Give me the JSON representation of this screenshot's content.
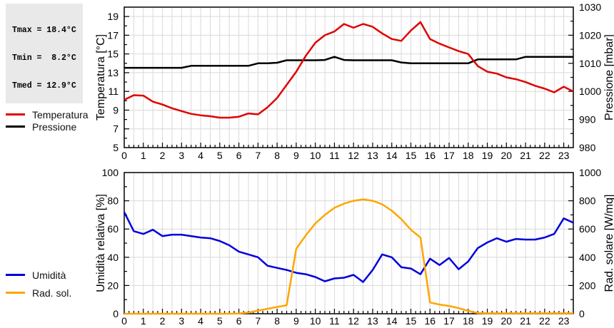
{
  "stats_box": {
    "lines": [
      "Tmax = 18.4°C",
      "Tmin =  8.2°C",
      "Tmed = 12.9°C"
    ]
  },
  "colors": {
    "grid": "#d9d9d9",
    "plot_border": "#000000",
    "stats_background": "#e9e9e9",
    "page_background": "#ffffff"
  },
  "chart_data": [
    {
      "type": "line",
      "title": "",
      "legend_position": "left-outside",
      "grid": true,
      "x_axis": {
        "min": 0,
        "max": 23.5,
        "grid_step": 0.5,
        "minor_step": 0.25,
        "hour_labels": [
          0,
          1,
          2,
          3,
          4,
          5,
          6,
          7,
          8,
          9,
          10,
          11,
          12,
          13,
          14,
          15,
          16,
          17,
          18,
          19,
          20,
          21,
          22,
          23
        ]
      },
      "left_axis": {
        "title": "Temperatura [°C]",
        "min": 5,
        "max": 20,
        "minor_step": 1,
        "ticks": [
          5,
          7,
          9,
          11,
          13,
          15,
          17,
          19
        ]
      },
      "right_axis": {
        "title": "Pressione [mbar]",
        "min": 980,
        "max": 1030,
        "minor_step": 5,
        "ticks": [
          980,
          990,
          1000,
          1010,
          1020,
          1030
        ]
      },
      "x_hours": [
        0,
        0.5,
        1,
        1.5,
        2,
        2.5,
        3,
        3.5,
        4,
        4.5,
        5,
        5.5,
        6,
        6.5,
        7,
        7.5,
        8,
        8.5,
        9,
        9.5,
        10,
        10.5,
        11,
        11.5,
        12,
        12.5,
        13,
        13.5,
        14,
        14.5,
        15,
        15.5,
        16,
        16.5,
        17,
        17.5,
        18,
        18.5,
        19,
        19.5,
        20,
        20.5,
        21,
        21.5,
        22,
        22.5,
        23,
        23.5
      ],
      "series": [
        {
          "name": "Pressione",
          "axis": "right",
          "color": "#000000",
          "values": [
            1008.4,
            1008.4,
            1008.4,
            1008.4,
            1008.4,
            1008.4,
            1008.4,
            1009.1,
            1009.1,
            1009.1,
            1009.1,
            1009.1,
            1009.1,
            1009.1,
            1010,
            1010,
            1010.2,
            1011.1,
            1011.1,
            1011.1,
            1011.1,
            1011.2,
            1012.3,
            1011.2,
            1011.1,
            1011.1,
            1011.1,
            1011.1,
            1011.1,
            1010.3,
            1010,
            1010,
            1010,
            1010,
            1010,
            1010,
            1010,
            1011.4,
            1011.4,
            1011.4,
            1011.4,
            1011.4,
            1012.3,
            1012.3,
            1012.3,
            1012.3,
            1012.3,
            1012.3
          ]
        },
        {
          "name": "Temperatura",
          "axis": "left",
          "color": "#e00000",
          "values": [
            10.1,
            10.6,
            10.55,
            9.9,
            9.6,
            9.2,
            8.9,
            8.6,
            8.45,
            8.35,
            8.2,
            8.2,
            8.3,
            8.65,
            8.55,
            9.3,
            10.3,
            11.7,
            13.1,
            14.8,
            16.2,
            17.0,
            17.4,
            18.2,
            17.8,
            18.2,
            17.9,
            17.2,
            16.6,
            16.4,
            17.5,
            18.4,
            16.6,
            16.1,
            15.7,
            15.3,
            15.0,
            13.7,
            13.1,
            12.9,
            12.5,
            12.3,
            12.0,
            11.6,
            11.3,
            10.9,
            11.5,
            11.0
          ]
        }
      ]
    },
    {
      "type": "line",
      "title": "",
      "legend_position": "left-outside",
      "grid": true,
      "x_axis": {
        "min": 0,
        "max": 23.5,
        "grid_step": 0.5,
        "minor_step": 0.25,
        "hour_labels": [
          0,
          1,
          2,
          3,
          4,
          5,
          6,
          7,
          8,
          9,
          10,
          11,
          12,
          13,
          14,
          15,
          16,
          17,
          18,
          19,
          20,
          21,
          22,
          23
        ]
      },
      "left_axis": {
        "title": "Umidità relativa [%]",
        "min": 0,
        "max": 100,
        "minor_step": 10,
        "ticks": [
          0,
          20,
          40,
          60,
          80,
          100
        ]
      },
      "right_axis": {
        "title": "Rad. solare [W/mq]",
        "min": 0,
        "max": 1000,
        "minor_step": 100,
        "ticks": [
          0,
          200,
          400,
          600,
          800,
          1000
        ]
      },
      "x_hours": [
        0,
        0.5,
        1,
        1.5,
        2,
        2.5,
        3,
        3.5,
        4,
        4.5,
        5,
        5.5,
        6,
        6.5,
        7,
        7.5,
        8,
        8.5,
        9,
        9.5,
        10,
        10.5,
        11,
        11.5,
        12,
        12.5,
        13,
        13.5,
        14,
        14.5,
        15,
        15.5,
        16,
        16.5,
        17,
        17.5,
        18,
        18.5,
        19,
        19.5,
        20,
        20.5,
        21,
        21.5,
        22,
        22.5,
        23,
        23.5
      ],
      "series": [
        {
          "name": "Umidità",
          "axis": "left",
          "color": "#0000dd",
          "values": [
            72,
            58.5,
            56.5,
            59.5,
            55,
            56,
            56,
            55,
            54,
            53.5,
            51.5,
            48.5,
            44,
            42,
            40,
            34,
            32.5,
            31,
            29,
            28,
            26,
            23,
            25,
            25.5,
            27.5,
            22.5,
            31,
            42,
            40,
            33,
            32,
            28,
            39,
            34.5,
            39.5,
            31.5,
            37,
            46.5,
            50.5,
            53.5,
            51,
            53,
            52.5,
            52.5,
            54,
            56.5,
            67.5,
            64.5
          ]
        },
        {
          "name": "Rad. sol.",
          "axis": "right",
          "color": "#ffa500",
          "values": [
            0,
            0,
            0,
            0,
            0,
            0,
            0,
            0,
            0,
            0,
            0,
            0,
            2,
            8,
            22,
            35,
            48,
            60,
            460,
            555,
            640,
            700,
            750,
            780,
            800,
            810,
            800,
            775,
            730,
            670,
            595,
            540,
            80,
            65,
            55,
            40,
            20,
            5,
            3,
            3,
            3,
            3,
            3,
            3,
            3,
            3,
            3,
            3
          ]
        }
      ]
    }
  ]
}
